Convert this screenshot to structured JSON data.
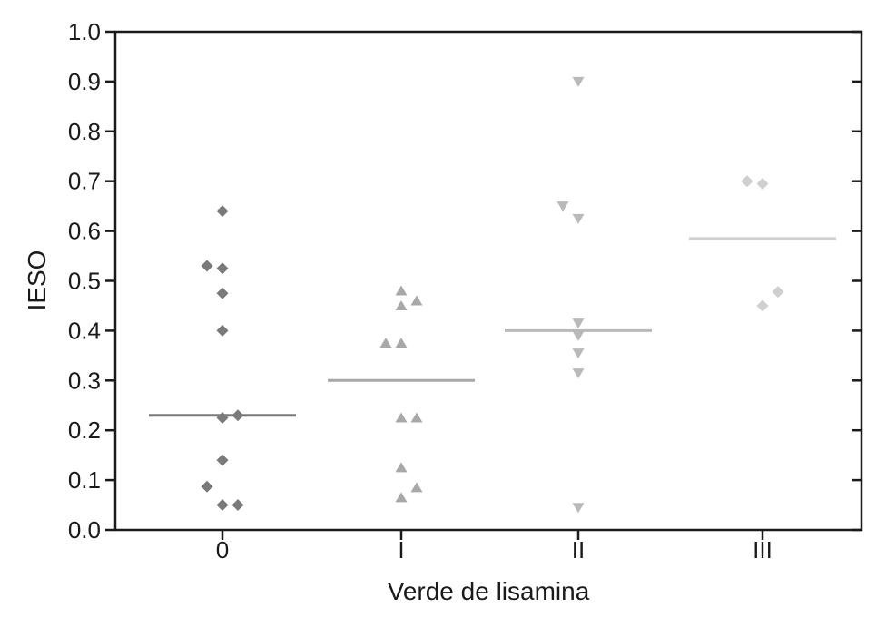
{
  "chart_data": {
    "type": "scatter",
    "title": "",
    "xlabel": "Verde de lisamina",
    "ylabel": "IESO",
    "categories": [
      "0",
      "I",
      "II",
      "III"
    ],
    "ylim": [
      0.0,
      1.0
    ],
    "yticks": [
      "0.0",
      "0.1",
      "0.2",
      "0.3",
      "0.4",
      "0.5",
      "0.6",
      "0.7",
      "0.8",
      "0.9",
      "1.0"
    ],
    "grid": false,
    "series": [
      {
        "category": "0",
        "marker": "diamond",
        "color": "#7a7a7a",
        "median": 0.23,
        "points": [
          {
            "dx": 0,
            "y": 0.64
          },
          {
            "dx": -1,
            "y": 0.53
          },
          {
            "dx": 0,
            "y": 0.525
          },
          {
            "dx": 0,
            "y": 0.475
          },
          {
            "dx": 0,
            "y": 0.4
          },
          {
            "dx": 0,
            "y": 0.225
          },
          {
            "dx": 1,
            "y": 0.23
          },
          {
            "dx": 0,
            "y": 0.14
          },
          {
            "dx": -1,
            "y": 0.087
          },
          {
            "dx": 0,
            "y": 0.05
          },
          {
            "dx": 1,
            "y": 0.05
          }
        ]
      },
      {
        "category": "I",
        "marker": "triangle-up",
        "color": "#a8a8a8",
        "median": 0.3,
        "points": [
          {
            "dx": 0,
            "y": 0.48
          },
          {
            "dx": 0,
            "y": 0.45
          },
          {
            "dx": 1,
            "y": 0.46
          },
          {
            "dx": -1,
            "y": 0.375
          },
          {
            "dx": 0,
            "y": 0.375
          },
          {
            "dx": 0,
            "y": 0.225
          },
          {
            "dx": 1,
            "y": 0.225
          },
          {
            "dx": 0,
            "y": 0.125
          },
          {
            "dx": 1,
            "y": 0.085
          },
          {
            "dx": 0,
            "y": 0.065
          }
        ]
      },
      {
        "category": "II",
        "marker": "triangle-down",
        "color": "#b9b9b9",
        "median": 0.4,
        "points": [
          {
            "dx": 0,
            "y": 0.9
          },
          {
            "dx": -1,
            "y": 0.65
          },
          {
            "dx": 0,
            "y": 0.625
          },
          {
            "dx": 0,
            "y": 0.415
          },
          {
            "dx": 0,
            "y": 0.39
          },
          {
            "dx": 0,
            "y": 0.355
          },
          {
            "dx": 0,
            "y": 0.315
          },
          {
            "dx": 0,
            "y": 0.045
          }
        ]
      },
      {
        "category": "III",
        "marker": "diamond",
        "color": "#cfcfcf",
        "median": 0.585,
        "points": [
          {
            "dx": -1,
            "y": 0.7
          },
          {
            "dx": 0,
            "y": 0.695
          },
          {
            "dx": 1,
            "y": 0.478
          },
          {
            "dx": 0,
            "y": 0.45
          }
        ]
      }
    ]
  }
}
